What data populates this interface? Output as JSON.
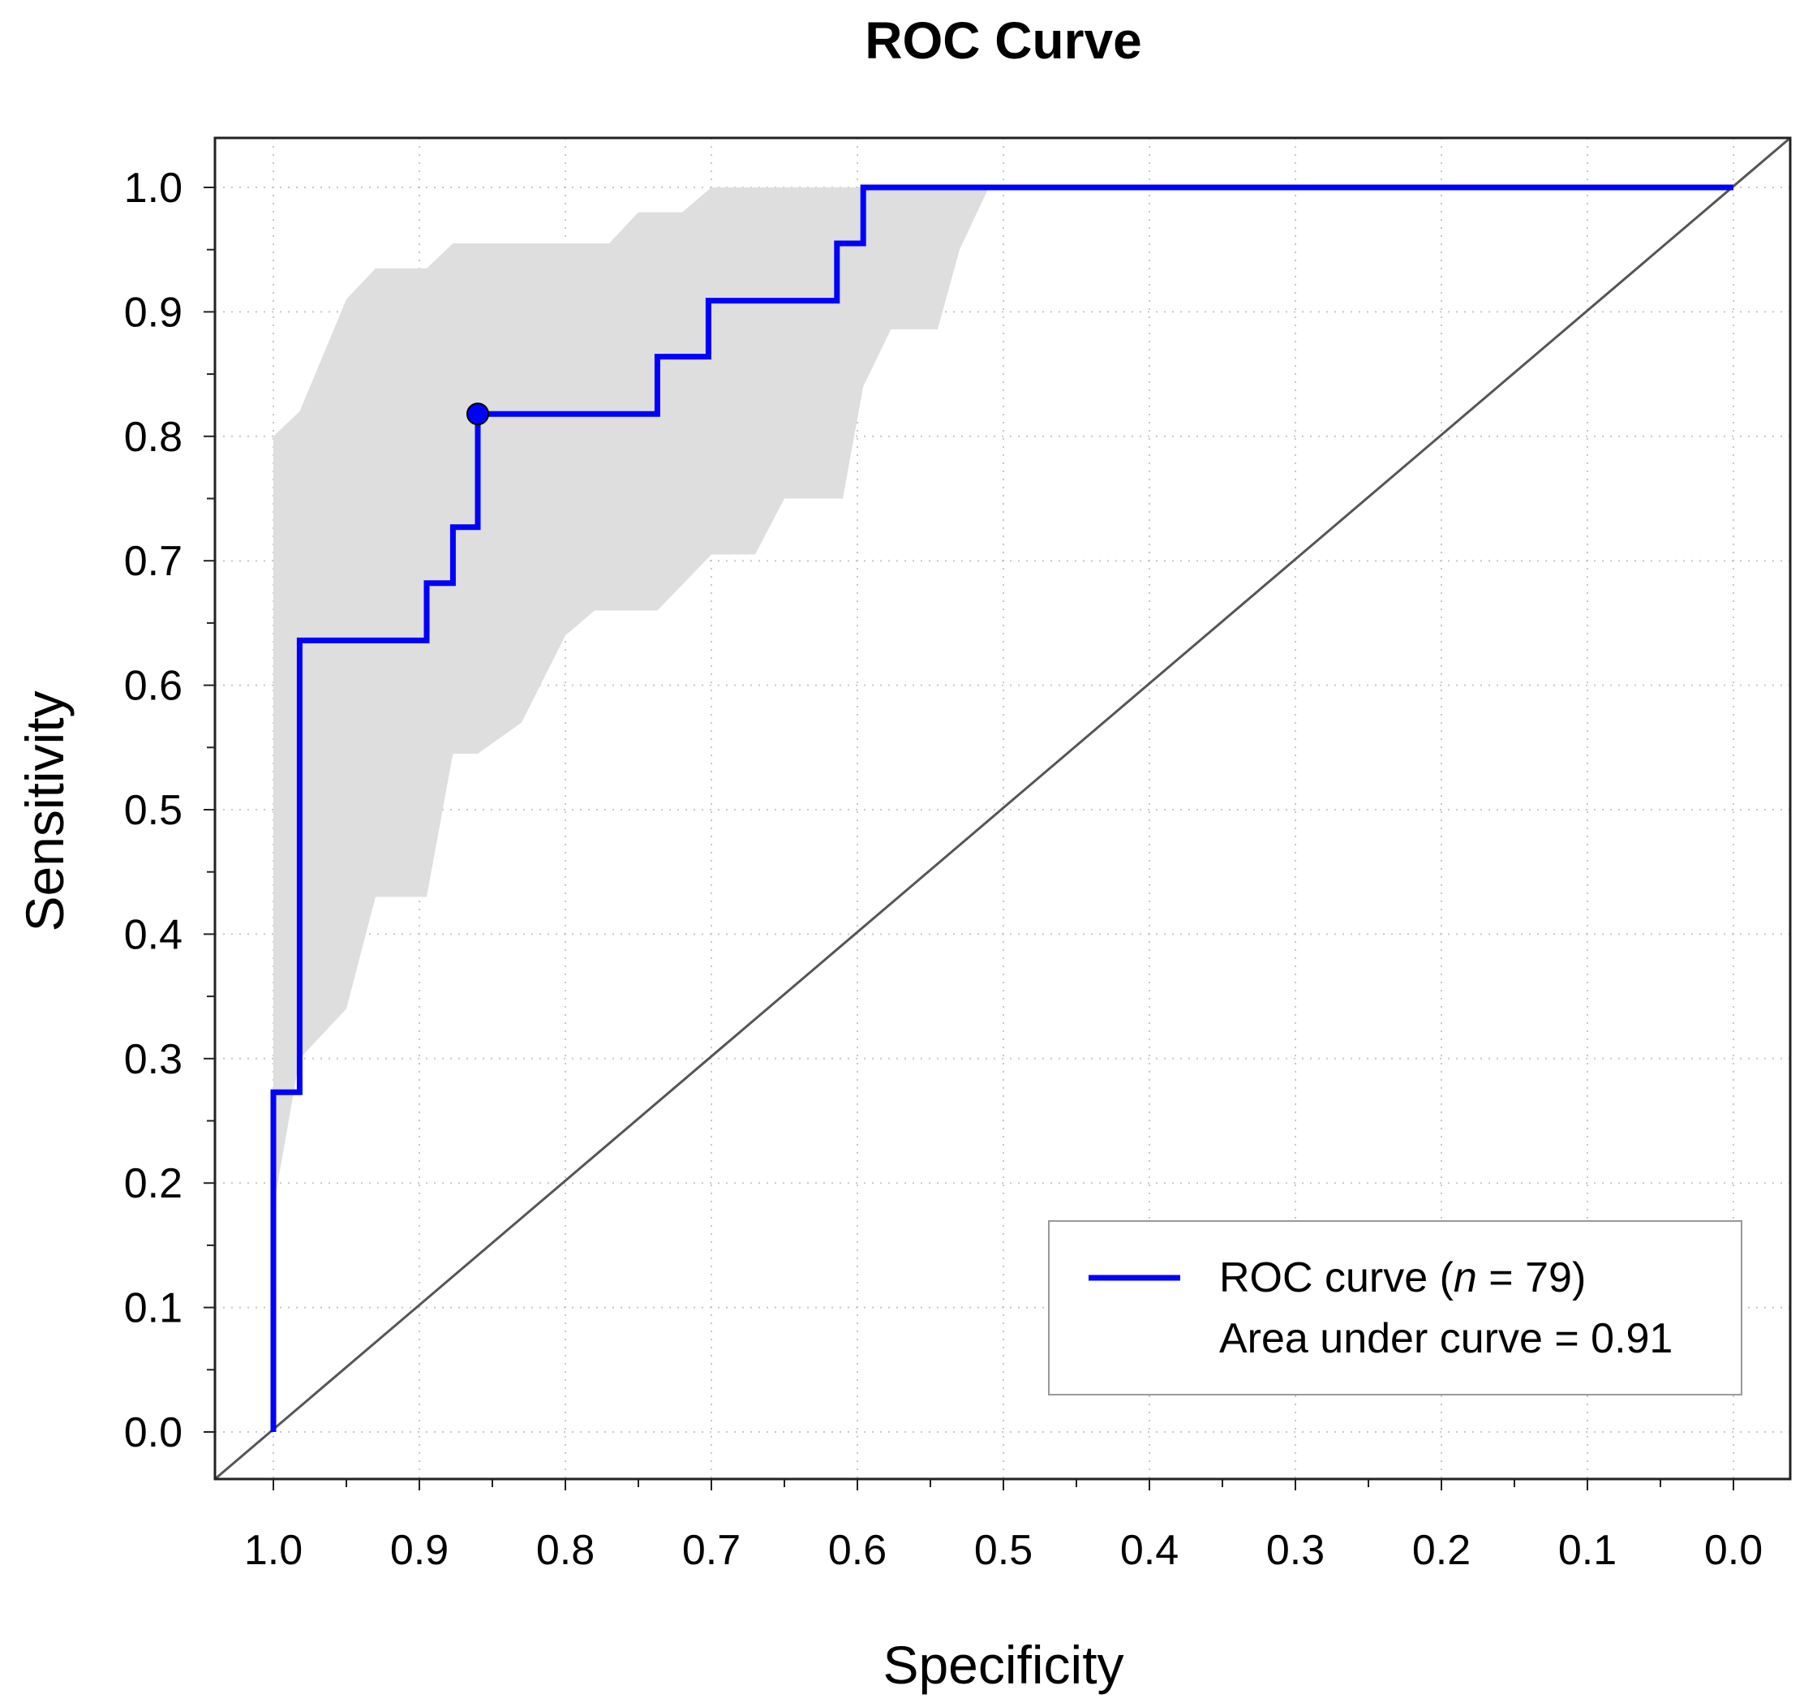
{
  "chart_data": {
    "type": "line",
    "title": "ROC Curve",
    "xlabel": "Specificity",
    "ylabel": "Sensitivity",
    "xlim": [
      1.0,
      0.0
    ],
    "ylim": [
      0.0,
      1.0
    ],
    "x_ticks": [
      "1.0",
      "0.9",
      "0.8",
      "0.7",
      "0.6",
      "0.5",
      "0.4",
      "0.3",
      "0.2",
      "0.1",
      "0.0"
    ],
    "y_ticks": [
      "0.0",
      "0.1",
      "0.2",
      "0.3",
      "0.4",
      "0.5",
      "0.6",
      "0.7",
      "0.8",
      "0.9",
      "1.0"
    ],
    "grid": true,
    "colors": {
      "curve": "#0000ff",
      "band": "#dedede",
      "diagonal": "#555555",
      "grid": "#c8c8c8"
    },
    "series": [
      {
        "name": "ROC curve",
        "specificity": [
          1.0,
          1.0,
          0.982,
          0.982,
          0.895,
          0.895,
          0.877,
          0.877,
          0.86,
          0.86,
          0.737,
          0.737,
          0.702,
          0.702,
          0.614,
          0.614,
          0.596,
          0.596,
          0.0
        ],
        "sensitivity": [
          0.0,
          0.273,
          0.273,
          0.636,
          0.636,
          0.682,
          0.682,
          0.727,
          0.727,
          0.818,
          0.818,
          0.864,
          0.864,
          0.909,
          0.909,
          0.955,
          0.955,
          1.0,
          1.0
        ]
      }
    ],
    "confidence_band": {
      "upper": {
        "specificity": [
          1.0,
          0.982,
          0.95,
          0.93,
          0.895,
          0.877,
          0.8,
          0.77,
          0.75,
          0.72,
          0.7,
          0.6,
          0.53,
          0.51
        ],
        "sensitivity": [
          0.8,
          0.82,
          0.91,
          0.935,
          0.935,
          0.955,
          0.955,
          0.955,
          0.98,
          0.98,
          1.0,
          1.0,
          1.0,
          1.0
        ]
      },
      "lower": {
        "specificity": [
          1.0,
          0.982,
          0.95,
          0.93,
          0.895,
          0.877,
          0.86,
          0.83,
          0.8,
          0.78,
          0.737,
          0.7,
          0.67,
          0.65,
          0.61,
          0.596,
          0.577,
          0.545,
          0.53,
          0.51
        ],
        "sensitivity": [
          0.18,
          0.3,
          0.34,
          0.43,
          0.43,
          0.545,
          0.545,
          0.57,
          0.64,
          0.66,
          0.66,
          0.705,
          0.705,
          0.75,
          0.75,
          0.84,
          0.886,
          0.886,
          0.95,
          1.0
        ]
      }
    },
    "optimal_point": {
      "specificity": 0.86,
      "sensitivity": 0.818
    },
    "diagonal": true,
    "legend": {
      "position": "bottom-right",
      "line1": "ROC curve (",
      "n_symbol": "n",
      "n_text": " = 79)",
      "line2": "Area under curve =  0.91"
    },
    "n": 79,
    "auc": 0.91
  }
}
